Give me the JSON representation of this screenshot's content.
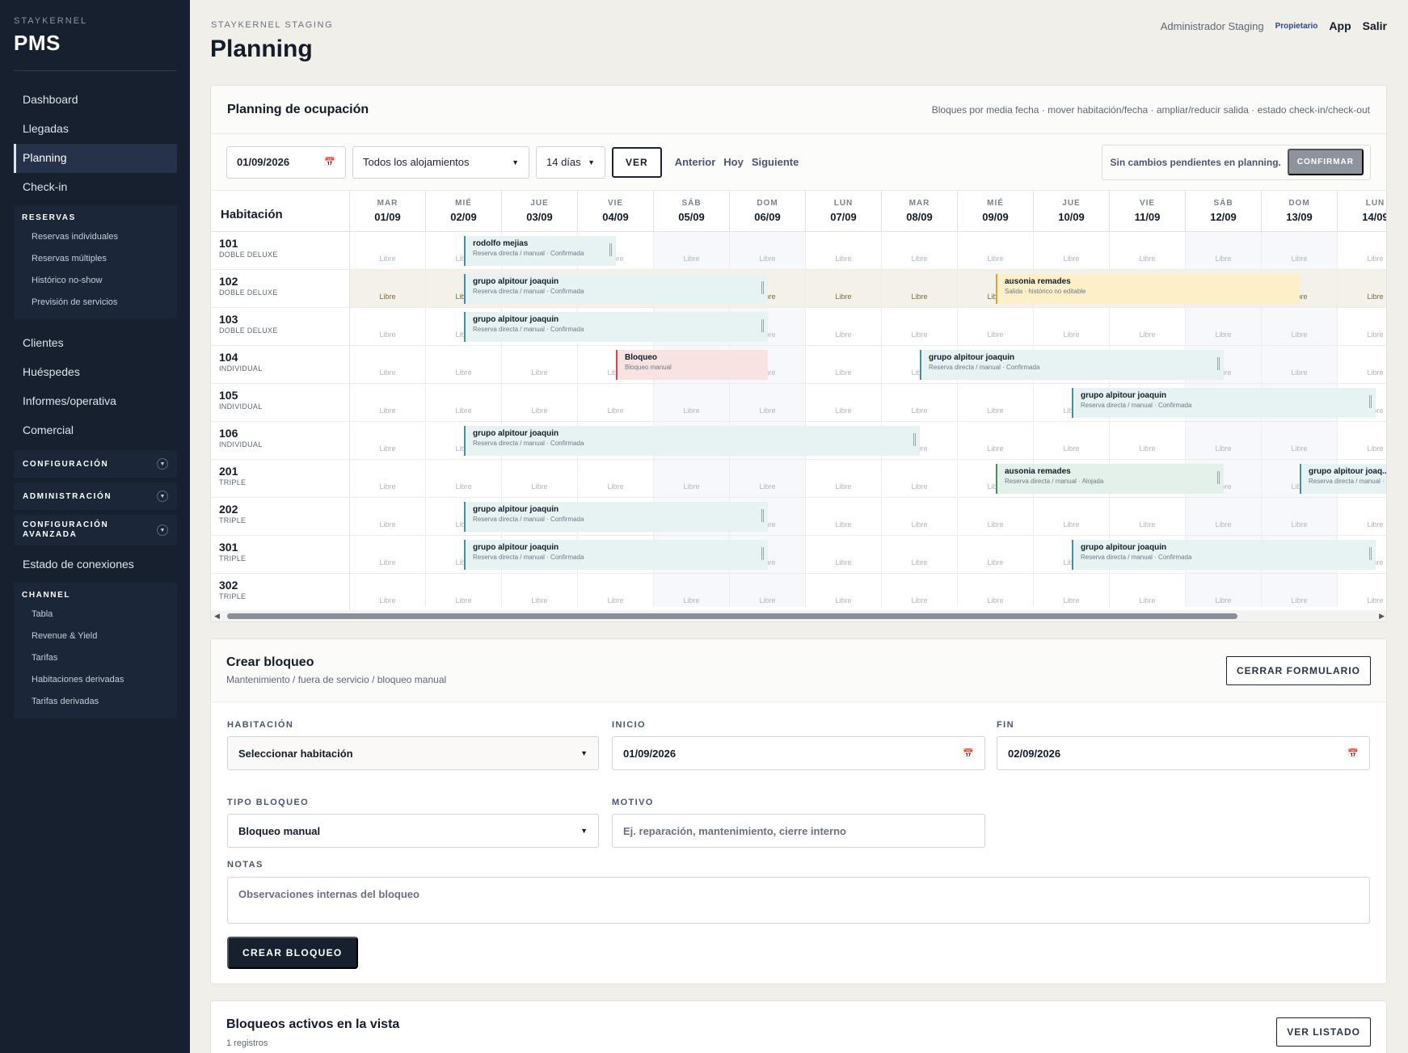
{
  "sidebar": {
    "brand_small": "STAYKERNEL",
    "brand_big": "PMS",
    "main_items": [
      "Dashboard",
      "Llegadas",
      "Planning",
      "Check-in"
    ],
    "active": "Planning",
    "reservas": {
      "title": "RESERVAS",
      "items": [
        "Reservas individuales",
        "Reservas múltiples",
        "Histórico no-show",
        "Previsión de servicios"
      ]
    },
    "secondary_items": [
      "Clientes",
      "Huéspedes",
      "Informes/operativa",
      "Comercial"
    ],
    "collapsibles": [
      "CONFIGURACIÓN",
      "ADMINISTRACIÓN",
      "CONFIGURACIÓN AVANZADA"
    ],
    "estado": "Estado de conexiones",
    "channel": {
      "title": "CHANNEL",
      "items": [
        "Tabla",
        "Revenue & Yield",
        "Tarifas",
        "Habitaciones derivadas",
        "Tarifas derivadas"
      ]
    }
  },
  "header": {
    "env": "STAYKERNEL STAGING",
    "title": "Planning",
    "user": "Administrador Staging",
    "role": "Propietario",
    "app": "App",
    "logout": "Salir"
  },
  "planning": {
    "title": "Planning de ocupación",
    "hint": "Bloques por media fecha · mover habitación/fecha · ampliar/reducir salida · estado check-in/check-out",
    "date": "01/09/2026",
    "filter": "Todos los alojamientos",
    "range": "14 días",
    "ver": "VER",
    "prev": "Anterior",
    "today": "Hoy",
    "next": "Siguiente",
    "pending": "Sin cambios pendientes en planning.",
    "confirm": "CONFIRMAR",
    "room_header": "Habitación",
    "free_label": "Libre",
    "days": [
      {
        "dow": "MAR",
        "date": "01/09"
      },
      {
        "dow": "MIÉ",
        "date": "02/09"
      },
      {
        "dow": "JUE",
        "date": "03/09"
      },
      {
        "dow": "VIE",
        "date": "04/09"
      },
      {
        "dow": "SÁB",
        "date": "05/09"
      },
      {
        "dow": "DOM",
        "date": "06/09"
      },
      {
        "dow": "LUN",
        "date": "07/09"
      },
      {
        "dow": "MAR",
        "date": "08/09"
      },
      {
        "dow": "MIÉ",
        "date": "09/09"
      },
      {
        "dow": "JUE",
        "date": "10/09"
      },
      {
        "dow": "VIE",
        "date": "11/09"
      },
      {
        "dow": "SÁB",
        "date": "12/09"
      },
      {
        "dow": "DOM",
        "date": "13/09"
      },
      {
        "dow": "LUN",
        "date": "14/09"
      }
    ],
    "rooms": [
      {
        "num": "101",
        "type": "DOBLE DELUXE"
      },
      {
        "num": "102",
        "type": "DOBLE DELUXE"
      },
      {
        "num": "103",
        "type": "DOBLE DELUXE"
      },
      {
        "num": "104",
        "type": "INDIVIDUAL"
      },
      {
        "num": "105",
        "type": "INDIVIDUAL"
      },
      {
        "num": "106",
        "type": "INDIVIDUAL"
      },
      {
        "num": "201",
        "type": "TRIPLE"
      },
      {
        "num": "202",
        "type": "TRIPLE"
      },
      {
        "num": "301",
        "type": "TRIPLE"
      },
      {
        "num": "302",
        "type": "TRIPLE"
      }
    ],
    "bookings": [
      {
        "room": 0,
        "start": 1.5,
        "end": 3.5,
        "name": "rodolfo mejias",
        "status": "Reserva directa / manual · Confirmada",
        "kind": "blue"
      },
      {
        "room": 1,
        "start": 1.5,
        "end": 5.5,
        "name": "grupo alpitour joaquin",
        "status": "Reserva directa / manual · Confirmada",
        "kind": "blue"
      },
      {
        "room": 1,
        "start": 8.5,
        "end": 12.5,
        "name": "ausonia remades",
        "status": "Salida · histórico no editable",
        "kind": "yellow"
      },
      {
        "room": 2,
        "start": 1.5,
        "end": 5.5,
        "name": "grupo alpitour joaquin",
        "status": "Reserva directa / manual · Confirmada",
        "kind": "blue"
      },
      {
        "room": 3,
        "start": 3.5,
        "end": 5.5,
        "name": "Bloqueo",
        "status": "Bloqueo manual",
        "kind": "red"
      },
      {
        "room": 3,
        "start": 7.5,
        "end": 11.5,
        "name": "grupo alpitour joaquin",
        "status": "Reserva directa / manual · Confirmada",
        "kind": "blue"
      },
      {
        "room": 4,
        "start": 9.5,
        "end": 13.5,
        "name": "grupo alpitour joaquin",
        "status": "Reserva directa / manual · Confirmada",
        "kind": "blue"
      },
      {
        "room": 5,
        "start": 1.5,
        "end": 7.5,
        "name": "grupo alpitour joaquin",
        "status": "Reserva directa / manual · Confirmada",
        "kind": "blue"
      },
      {
        "room": 6,
        "start": 8.5,
        "end": 11.5,
        "name": "ausonia remades",
        "status": "Reserva directa / manual · Alojada",
        "kind": "green"
      },
      {
        "room": 6,
        "start": 12.5,
        "end": 14,
        "name": "grupo alpitour joaq...",
        "status": "Reserva directa / manual · ...",
        "kind": "blue"
      },
      {
        "room": 7,
        "start": 1.5,
        "end": 5.5,
        "name": "grupo alpitour joaquin",
        "status": "Reserva directa / manual · Confirmada",
        "kind": "blue"
      },
      {
        "room": 8,
        "start": 1.5,
        "end": 5.5,
        "name": "grupo alpitour joaquin",
        "status": "Reserva directa / manual · Confirmada",
        "kind": "blue"
      },
      {
        "room": 8,
        "start": 9.5,
        "end": 13.5,
        "name": "grupo alpitour joaquin",
        "status": "Reserva directa / manual · Confirmada",
        "kind": "blue"
      }
    ]
  },
  "form": {
    "title": "Crear bloqueo",
    "subtitle": "Mantenimiento / fuera de servicio / bloqueo manual",
    "close": "CERRAR FORMULARIO",
    "room_label": "HABITACIÓN",
    "room_value": "Seleccionar habitación",
    "start_label": "INICIO",
    "start_value": "01/09/2026",
    "end_label": "FIN",
    "end_value": "02/09/2026",
    "type_label": "TIPO BLOQUEO",
    "type_value": "Bloqueo manual",
    "reason_label": "MOTIVO",
    "reason_placeholder": "Ej. reparación, mantenimiento, cierre interno",
    "notes_label": "NOTAS",
    "notes_placeholder": "Observaciones internas del bloqueo",
    "submit": "CREAR BLOQUEO"
  },
  "active_blocks": {
    "title": "Bloqueos activos en la vista",
    "count": "1 registros",
    "list": "VER LISTADO"
  }
}
